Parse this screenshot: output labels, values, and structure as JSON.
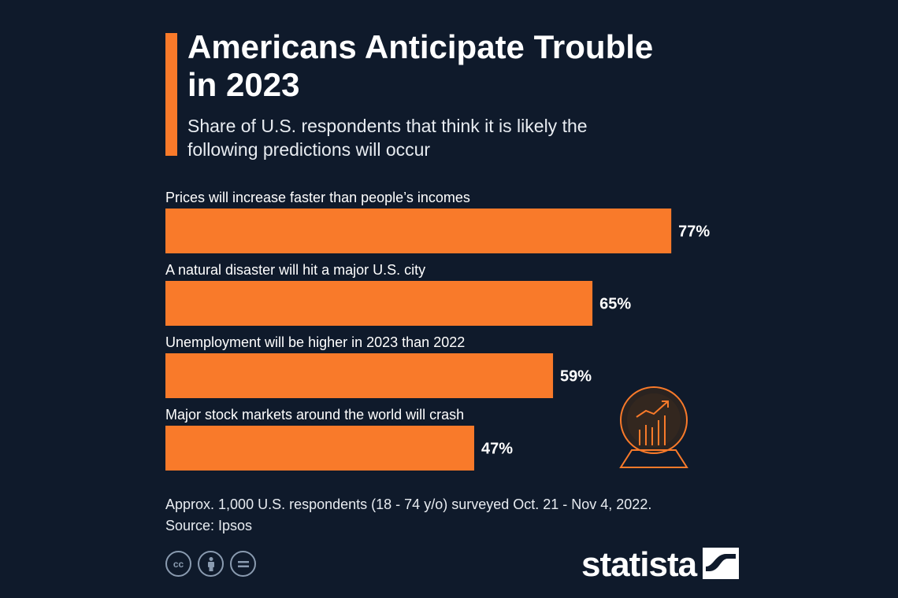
{
  "header": {
    "title": "Americans Anticipate Trouble in 2023",
    "subtitle": "Share of U.S. respondents that think it is likely the following predictions will occur"
  },
  "colors": {
    "background": "#0f1a2b",
    "accent": "#f97a2a",
    "bar": "#f97a2a"
  },
  "chart_data": {
    "type": "bar",
    "orientation": "horizontal",
    "title": "Americans Anticipate Trouble in 2023",
    "subtitle": "Share of U.S. respondents that think it is likely the following predictions will occur",
    "categories": [
      "Prices will increase faster than people’s incomes",
      "A natural disaster will hit a major U.S. city",
      "Unemployment will be higher in 2023 than 2022",
      "Major stock markets around the world will crash"
    ],
    "values": [
      77,
      65,
      59,
      47
    ],
    "value_labels": [
      "77%",
      "65%",
      "59%",
      "47%"
    ],
    "unit": "%",
    "xlim": [
      0,
      100
    ],
    "grid": false,
    "legend": "none"
  },
  "footer": {
    "note": "Approx. 1,000 U.S. respondents (18 - 74 y/o) surveyed Oct. 21 - Nov 4, 2022.",
    "source": "Source: Ipsos",
    "license_icons": [
      "creative-commons-icon",
      "attribution-icon",
      "no-derivatives-icon"
    ],
    "brand": "statista"
  },
  "decoration": {
    "icon": "crystal-ball-chart-icon"
  }
}
